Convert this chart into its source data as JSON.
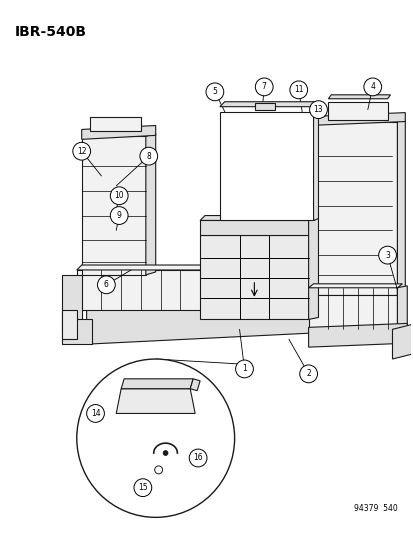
{
  "title": "IBR-540B",
  "subtitle": "94379  540",
  "bg_color": "#ffffff",
  "line_color": "#1a1a1a",
  "figsize": [
    4.14,
    5.33
  ],
  "dpi": 100,
  "seat_fill": "#f2f2f2",
  "seat_dark": "#e0e0e0",
  "seat_mid": "#ebebeb"
}
